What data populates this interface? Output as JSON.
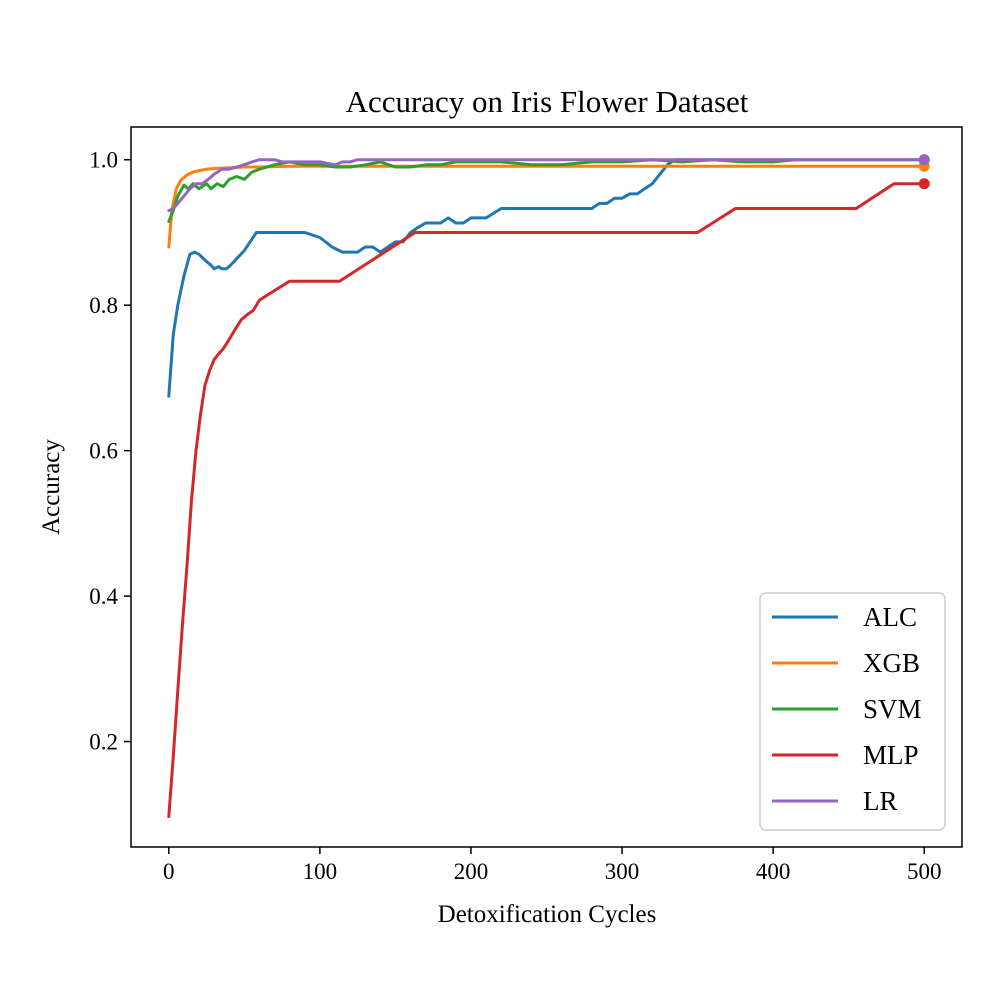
{
  "chart_data": {
    "type": "line",
    "title": "Accuracy on Iris Flower Dataset",
    "xlabel": "Detoxification Cycles",
    "ylabel": "Accuracy",
    "xlim": [
      -25,
      525
    ],
    "ylim": [
      0.055,
      1.045
    ],
    "xticks": [
      0,
      100,
      200,
      300,
      400,
      500
    ],
    "xtick_labels": [
      "0",
      "100",
      "200",
      "300",
      "400",
      "500"
    ],
    "yticks": [
      0.2,
      0.4,
      0.6,
      0.8,
      1.0
    ],
    "ytick_labels": [
      "0.2",
      "0.4",
      "0.6",
      "0.8",
      "1.0"
    ],
    "grid": false,
    "legend_position": "bottom-right",
    "series": [
      {
        "name": "ALC",
        "color": "#1f77b4",
        "end_marker": true,
        "x": [
          0,
          3,
          6,
          10,
          14,
          17,
          20,
          25,
          28,
          30,
          33,
          35,
          38,
          40,
          50,
          58,
          70,
          80,
          90,
          100,
          108,
          115,
          120,
          125,
          130,
          135,
          140,
          145,
          150,
          155,
          160,
          165,
          170,
          175,
          180,
          185,
          190,
          195,
          200,
          210,
          220,
          240,
          260,
          280,
          285,
          290,
          295,
          300,
          305,
          310,
          315,
          320,
          325,
          330,
          335,
          340,
          350,
          360,
          380,
          400,
          450,
          500
        ],
        "y": [
          0.675,
          0.76,
          0.8,
          0.84,
          0.87,
          0.873,
          0.87,
          0.86,
          0.855,
          0.85,
          0.853,
          0.85,
          0.85,
          0.853,
          0.875,
          0.9,
          0.9,
          0.9,
          0.9,
          0.893,
          0.88,
          0.873,
          0.873,
          0.873,
          0.88,
          0.88,
          0.873,
          0.88,
          0.887,
          0.887,
          0.9,
          0.907,
          0.913,
          0.913,
          0.913,
          0.92,
          0.913,
          0.913,
          0.92,
          0.92,
          0.933,
          0.933,
          0.933,
          0.933,
          0.94,
          0.94,
          0.947,
          0.947,
          0.953,
          0.953,
          0.96,
          0.967,
          0.98,
          0.993,
          1.0,
          1.0,
          1.0,
          1.0,
          1.0,
          1.0,
          1.0,
          1.0
        ]
      },
      {
        "name": "XGB",
        "color": "#ff7f0e",
        "end_marker": true,
        "x": [
          0,
          2,
          5,
          8,
          12,
          16,
          20,
          25,
          30,
          40,
          50,
          60,
          80,
          100,
          200,
          300,
          400,
          500
        ],
        "y": [
          0.88,
          0.93,
          0.96,
          0.972,
          0.979,
          0.983,
          0.985,
          0.987,
          0.988,
          0.989,
          0.99,
          0.99,
          0.991,
          0.991,
          0.991,
          0.991,
          0.991,
          0.991
        ]
      },
      {
        "name": "SVM",
        "color": "#2ca02c",
        "end_marker": false,
        "x": [
          0,
          3,
          6,
          10,
          13,
          16,
          20,
          25,
          28,
          32,
          36,
          40,
          45,
          50,
          55,
          60,
          70,
          80,
          90,
          100,
          110,
          120,
          130,
          140,
          150,
          160,
          170,
          180,
          190,
          200,
          220,
          240,
          260,
          280,
          300,
          320,
          340,
          360,
          380,
          400,
          415
        ],
        "y": [
          0.915,
          0.93,
          0.95,
          0.965,
          0.96,
          0.967,
          0.96,
          0.967,
          0.96,
          0.967,
          0.963,
          0.973,
          0.977,
          0.973,
          0.983,
          0.987,
          0.993,
          0.997,
          0.993,
          0.993,
          0.99,
          0.99,
          0.993,
          0.997,
          0.99,
          0.99,
          0.993,
          0.993,
          0.997,
          0.997,
          0.997,
          0.993,
          0.993,
          0.997,
          0.997,
          1.0,
          0.997,
          1.0,
          0.997,
          0.997,
          1.0
        ]
      },
      {
        "name": "MLP",
        "color": "#d62728",
        "end_marker": true,
        "x": [
          0,
          3,
          6,
          9,
          12,
          15,
          18,
          21,
          24,
          27,
          30,
          33,
          36,
          40,
          44,
          48,
          52,
          56,
          60,
          70,
          80,
          100,
          113,
          163,
          200,
          300,
          350,
          375,
          420,
          455,
          480,
          500
        ],
        "y": [
          0.097,
          0.18,
          0.27,
          0.36,
          0.44,
          0.53,
          0.6,
          0.65,
          0.69,
          0.71,
          0.725,
          0.733,
          0.74,
          0.753,
          0.767,
          0.78,
          0.787,
          0.793,
          0.807,
          0.82,
          0.833,
          0.833,
          0.833,
          0.9,
          0.9,
          0.9,
          0.9,
          0.933,
          0.933,
          0.933,
          0.967,
          0.967
        ]
      },
      {
        "name": "LR",
        "color": "#9467bd",
        "end_marker": true,
        "x": [
          0,
          3,
          6,
          10,
          14,
          18,
          22,
          26,
          30,
          35,
          40,
          45,
          50,
          55,
          60,
          65,
          70,
          75,
          80,
          90,
          100,
          110,
          115,
          120,
          125,
          130,
          140,
          150,
          200,
          300,
          400,
          500
        ],
        "y": [
          0.93,
          0.933,
          0.94,
          0.95,
          0.96,
          0.967,
          0.967,
          0.973,
          0.98,
          0.987,
          0.987,
          0.99,
          0.993,
          0.997,
          1.0,
          1.0,
          1.0,
          0.997,
          0.997,
          0.997,
          0.997,
          0.993,
          0.997,
          0.997,
          1.0,
          1.0,
          1.0,
          1.0,
          1.0,
          1.0,
          1.0,
          1.0
        ]
      }
    ]
  }
}
